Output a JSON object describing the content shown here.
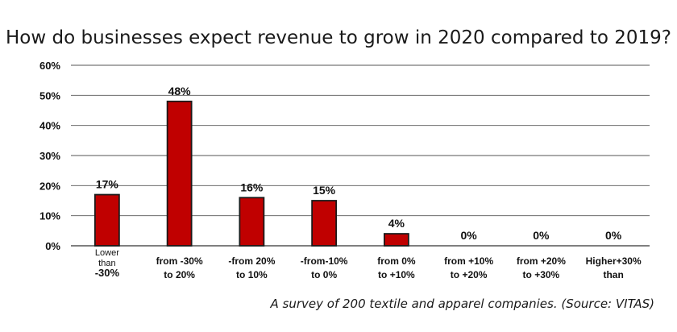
{
  "chart_data": {
    "type": "bar",
    "title": "How do businesses expect revenue to grow in 2020 compared to 2019?",
    "xlabel": "",
    "ylabel": "",
    "ylim": [
      0,
      60
    ],
    "yticks": [
      "0%",
      "10%",
      "20%",
      "30%",
      "40%",
      "50%",
      "60%"
    ],
    "grid": true,
    "legend": "none",
    "categories": [
      {
        "line1": "Lower",
        "line2": "than",
        "line3": "-30%"
      },
      {
        "line1": "from -30%",
        "line2": "to  20%"
      },
      {
        "line1": "-from 20%",
        "line2": "to  10%"
      },
      {
        "line1": "-from-10%",
        "line2": "to  0%"
      },
      {
        "line1": "from  0%",
        "line2": "to +10%"
      },
      {
        "line1": "from +10%",
        "line2": "to +20%"
      },
      {
        "line1": "from +20%",
        "line2": "to +30%"
      },
      {
        "line1": "Higher+30%",
        "line2": "than"
      }
    ],
    "values": [
      17,
      48,
      16,
      15,
      4,
      0,
      0,
      0
    ],
    "value_labels": [
      "17%",
      "48%",
      "16%",
      "15%",
      "4%",
      "0%",
      "0%",
      "0%"
    ],
    "bar_color": "#c00000"
  },
  "source_note": "A survey of 200 textile and apparel companies. (Source: VITAS)"
}
